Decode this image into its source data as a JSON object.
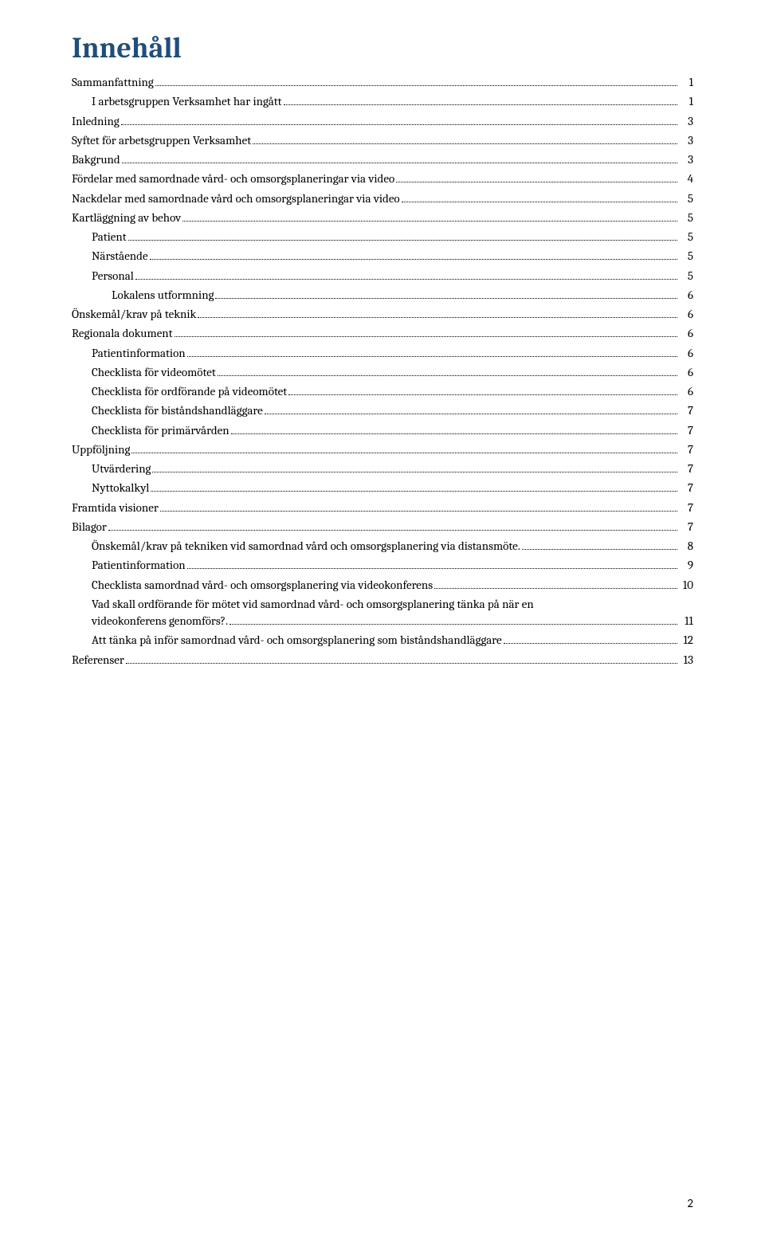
{
  "title": "Innehåll",
  "page_number": "2",
  "colors": {
    "title": "#1f4e79",
    "text": "#000000",
    "background": "#ffffff",
    "dots": "#000000"
  },
  "typography": {
    "title_fontsize": 36,
    "body_fontsize": 15,
    "title_font": "Cambria",
    "body_font": "Cambria"
  },
  "toc": [
    {
      "label": "Sammanfattning",
      "page": "1",
      "indent": 0,
      "bold": false
    },
    {
      "label": "I arbetsgruppen Verksamhet har ingått",
      "page": "1",
      "indent": 1,
      "bold": false
    },
    {
      "label": "Inledning",
      "page": "3",
      "indent": 0,
      "bold": false
    },
    {
      "label": "Syftet för arbetsgruppen Verksamhet",
      "page": "3",
      "indent": 0,
      "bold": false
    },
    {
      "label": "Bakgrund",
      "page": "3",
      "indent": 0,
      "bold": false
    },
    {
      "label": "Fördelar med samordnade vård- och omsorgsplaneringar via video",
      "page": "4",
      "indent": 0,
      "bold": false
    },
    {
      "label": "Nackdelar med samordnade vård och omsorgsplaneringar via video",
      "page": "5",
      "indent": 0,
      "bold": false
    },
    {
      "label": "Kartläggning av behov",
      "page": "5",
      "indent": 0,
      "bold": false
    },
    {
      "label": "Patient",
      "page": "5",
      "indent": 1,
      "bold": false
    },
    {
      "label": "Närstående",
      "page": "5",
      "indent": 1,
      "bold": false
    },
    {
      "label": "Personal",
      "page": "5",
      "indent": 1,
      "bold": false
    },
    {
      "label": "Lokalens utformning",
      "page": "6",
      "indent": 2,
      "bold": false
    },
    {
      "label": "Önskemål/krav på teknik",
      "page": "6",
      "indent": 0,
      "bold": false
    },
    {
      "label": "Regionala dokument",
      "page": "6",
      "indent": 0,
      "bold": false
    },
    {
      "label": "Patientinformation",
      "page": "6",
      "indent": 1,
      "bold": false
    },
    {
      "label": "Checklista för videomötet",
      "page": "6",
      "indent": 1,
      "bold": false
    },
    {
      "label": "Checklista för ordförande på videomötet",
      "page": "6",
      "indent": 1,
      "bold": false
    },
    {
      "label": "Checklista för biståndshandläggare",
      "page": "7",
      "indent": 1,
      "bold": false
    },
    {
      "label": "Checklista för primärvården",
      "page": "7",
      "indent": 1,
      "bold": false
    },
    {
      "label": "Uppföljning",
      "page": "7",
      "indent": 0,
      "bold": false
    },
    {
      "label": "Utvärdering",
      "page": "7",
      "indent": 1,
      "bold": false
    },
    {
      "label": "Nyttokalkyl",
      "page": "7",
      "indent": 1,
      "bold": false
    },
    {
      "label": "Framtida visioner",
      "page": "7",
      "indent": 0,
      "bold": false
    },
    {
      "label": "Bilagor",
      "page": "7",
      "indent": 0,
      "bold": false
    },
    {
      "label": "Önskemål/krav på tekniken vid samordnad vård och omsorgsplanering via distansmöte.",
      "page": "8",
      "indent": 1,
      "bold": false
    },
    {
      "label": "Patientinformation",
      "page": "9",
      "indent": 1,
      "bold": false
    },
    {
      "label": "Checklista samordnad vård- och omsorgsplanering via videokonferens",
      "page": "10",
      "indent": 1,
      "bold": false
    },
    {
      "label": "Vad skall ordförande för mötet vid samordnad vård- och omsorgsplanering tänka på när en videokonferens genomförs?.",
      "page": "11",
      "indent": 1,
      "bold": false,
      "wrap": true
    },
    {
      "label": "Att tänka på inför samordnad vård- och omsorgsplanering som biståndshandläggare",
      "page": "12",
      "indent": 1,
      "bold": false
    },
    {
      "label": "Referenser",
      "page": "13",
      "indent": 0,
      "bold": false
    }
  ]
}
